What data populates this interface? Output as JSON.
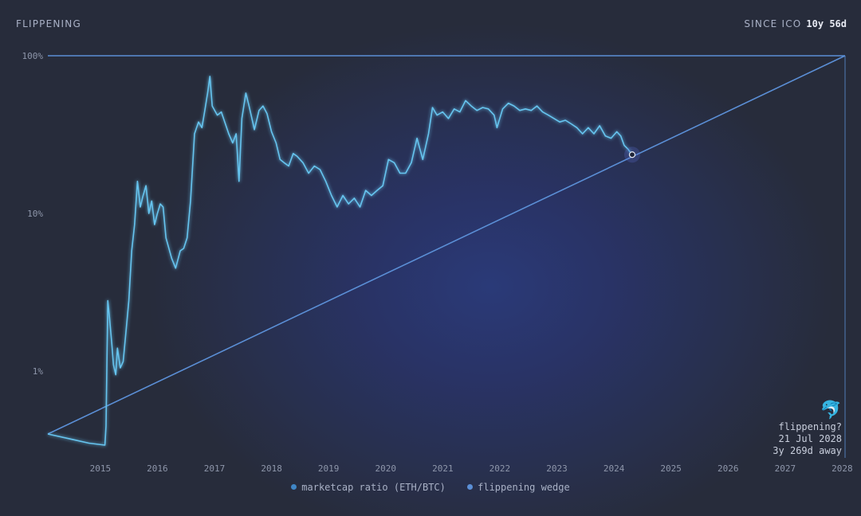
{
  "header": {
    "title": "FLIPPENING",
    "since_label": "SINCE ICO",
    "duration": "10y 56d"
  },
  "flippening_box": {
    "icon": "dolphin-icon",
    "question": "flippening?",
    "date": "21 Jul 2028",
    "away": "3y 269d away"
  },
  "legend": {
    "ratio_label": "marketcap ratio (ETH/BTC)",
    "wedge_label": "flippening wedge"
  },
  "colors": {
    "ratio_line": "#66c4ef",
    "wedge_line": "#5b8fd6",
    "background": "#272c3b"
  },
  "chart_data": {
    "type": "line",
    "y_scale": "log",
    "ylim": [
      0.004,
      1.0
    ],
    "xlim": [
      2014.58,
      2028.55
    ],
    "y_ticks": [
      {
        "value": 1.0,
        "label": "100%"
      },
      {
        "value": 0.1,
        "label": "10%"
      },
      {
        "value": 0.01,
        "label": "1%"
      }
    ],
    "x_ticks": [
      "2015",
      "2016",
      "2017",
      "2018",
      "2019",
      "2020",
      "2021",
      "2022",
      "2023",
      "2024",
      "2025",
      "2026",
      "2027",
      "2028"
    ],
    "series": [
      {
        "name": "marketcap ratio (ETH/BTC)",
        "points": [
          [
            2014.58,
            0.004
          ],
          [
            2015.0,
            0.0037
          ],
          [
            2015.3,
            0.0035
          ],
          [
            2015.58,
            0.0034
          ],
          [
            2015.6,
            0.0045
          ],
          [
            2015.63,
            0.028
          ],
          [
            2015.66,
            0.022
          ],
          [
            2015.7,
            0.015
          ],
          [
            2015.73,
            0.011
          ],
          [
            2015.77,
            0.0095
          ],
          [
            2015.8,
            0.014
          ],
          [
            2015.85,
            0.0105
          ],
          [
            2015.9,
            0.0115
          ],
          [
            2015.95,
            0.018
          ],
          [
            2016.0,
            0.028
          ],
          [
            2016.05,
            0.058
          ],
          [
            2016.1,
            0.085
          ],
          [
            2016.15,
            0.16
          ],
          [
            2016.2,
            0.11
          ],
          [
            2016.25,
            0.13
          ],
          [
            2016.3,
            0.15
          ],
          [
            2016.35,
            0.1
          ],
          [
            2016.4,
            0.12
          ],
          [
            2016.45,
            0.085
          ],
          [
            2016.5,
            0.1
          ],
          [
            2016.55,
            0.115
          ],
          [
            2016.6,
            0.11
          ],
          [
            2016.65,
            0.07
          ],
          [
            2016.75,
            0.052
          ],
          [
            2016.82,
            0.045
          ],
          [
            2016.9,
            0.058
          ],
          [
            2016.96,
            0.06
          ],
          [
            2017.02,
            0.07
          ],
          [
            2017.08,
            0.12
          ],
          [
            2017.15,
            0.32
          ],
          [
            2017.22,
            0.38
          ],
          [
            2017.28,
            0.35
          ],
          [
            2017.33,
            0.45
          ],
          [
            2017.38,
            0.58
          ],
          [
            2017.42,
            0.74
          ],
          [
            2017.46,
            0.48
          ],
          [
            2017.55,
            0.42
          ],
          [
            2017.62,
            0.44
          ],
          [
            2017.68,
            0.38
          ],
          [
            2017.75,
            0.32
          ],
          [
            2017.82,
            0.28
          ],
          [
            2017.88,
            0.32
          ],
          [
            2017.93,
            0.16
          ],
          [
            2017.98,
            0.4
          ],
          [
            2018.05,
            0.58
          ],
          [
            2018.1,
            0.49
          ],
          [
            2018.15,
            0.41
          ],
          [
            2018.2,
            0.34
          ],
          [
            2018.28,
            0.45
          ],
          [
            2018.35,
            0.48
          ],
          [
            2018.42,
            0.43
          ],
          [
            2018.5,
            0.33
          ],
          [
            2018.58,
            0.28
          ],
          [
            2018.65,
            0.22
          ],
          [
            2018.72,
            0.21
          ],
          [
            2018.8,
            0.2
          ],
          [
            2018.88,
            0.24
          ],
          [
            2018.95,
            0.23
          ],
          [
            2019.05,
            0.21
          ],
          [
            2019.15,
            0.18
          ],
          [
            2019.25,
            0.2
          ],
          [
            2019.35,
            0.19
          ],
          [
            2019.45,
            0.16
          ],
          [
            2019.55,
            0.13
          ],
          [
            2019.65,
            0.11
          ],
          [
            2019.75,
            0.13
          ],
          [
            2019.85,
            0.115
          ],
          [
            2019.95,
            0.125
          ],
          [
            2020.05,
            0.11
          ],
          [
            2020.15,
            0.14
          ],
          [
            2020.25,
            0.13
          ],
          [
            2020.35,
            0.14
          ],
          [
            2020.45,
            0.15
          ],
          [
            2020.55,
            0.22
          ],
          [
            2020.65,
            0.21
          ],
          [
            2020.75,
            0.18
          ],
          [
            2020.85,
            0.18
          ],
          [
            2020.95,
            0.21
          ],
          [
            2021.05,
            0.3
          ],
          [
            2021.15,
            0.22
          ],
          [
            2021.25,
            0.32
          ],
          [
            2021.32,
            0.47
          ],
          [
            2021.4,
            0.42
          ],
          [
            2021.5,
            0.44
          ],
          [
            2021.6,
            0.4
          ],
          [
            2021.7,
            0.46
          ],
          [
            2021.8,
            0.44
          ],
          [
            2021.9,
            0.52
          ],
          [
            2022.0,
            0.48
          ],
          [
            2022.1,
            0.45
          ],
          [
            2022.2,
            0.47
          ],
          [
            2022.3,
            0.46
          ],
          [
            2022.4,
            0.42
          ],
          [
            2022.45,
            0.35
          ],
          [
            2022.55,
            0.46
          ],
          [
            2022.65,
            0.5
          ],
          [
            2022.75,
            0.48
          ],
          [
            2022.85,
            0.45
          ],
          [
            2022.95,
            0.46
          ],
          [
            2023.05,
            0.45
          ],
          [
            2023.15,
            0.48
          ],
          [
            2023.25,
            0.44
          ],
          [
            2023.35,
            0.42
          ],
          [
            2023.45,
            0.4
          ],
          [
            2023.55,
            0.38
          ],
          [
            2023.65,
            0.39
          ],
          [
            2023.75,
            0.37
          ],
          [
            2023.85,
            0.35
          ],
          [
            2023.95,
            0.32
          ],
          [
            2024.05,
            0.35
          ],
          [
            2024.15,
            0.32
          ],
          [
            2024.25,
            0.36
          ],
          [
            2024.35,
            0.31
          ],
          [
            2024.45,
            0.3
          ],
          [
            2024.55,
            0.33
          ],
          [
            2024.62,
            0.31
          ],
          [
            2024.68,
            0.27
          ],
          [
            2024.75,
            0.255
          ],
          [
            2024.8,
            0.24
          ]
        ]
      },
      {
        "name": "flippening wedge",
        "points": [
          [
            2014.58,
            0.004
          ],
          [
            2028.55,
            1.0
          ]
        ]
      }
    ],
    "current_marker": {
      "x": 2024.82,
      "y": 0.236
    },
    "grid": false
  }
}
